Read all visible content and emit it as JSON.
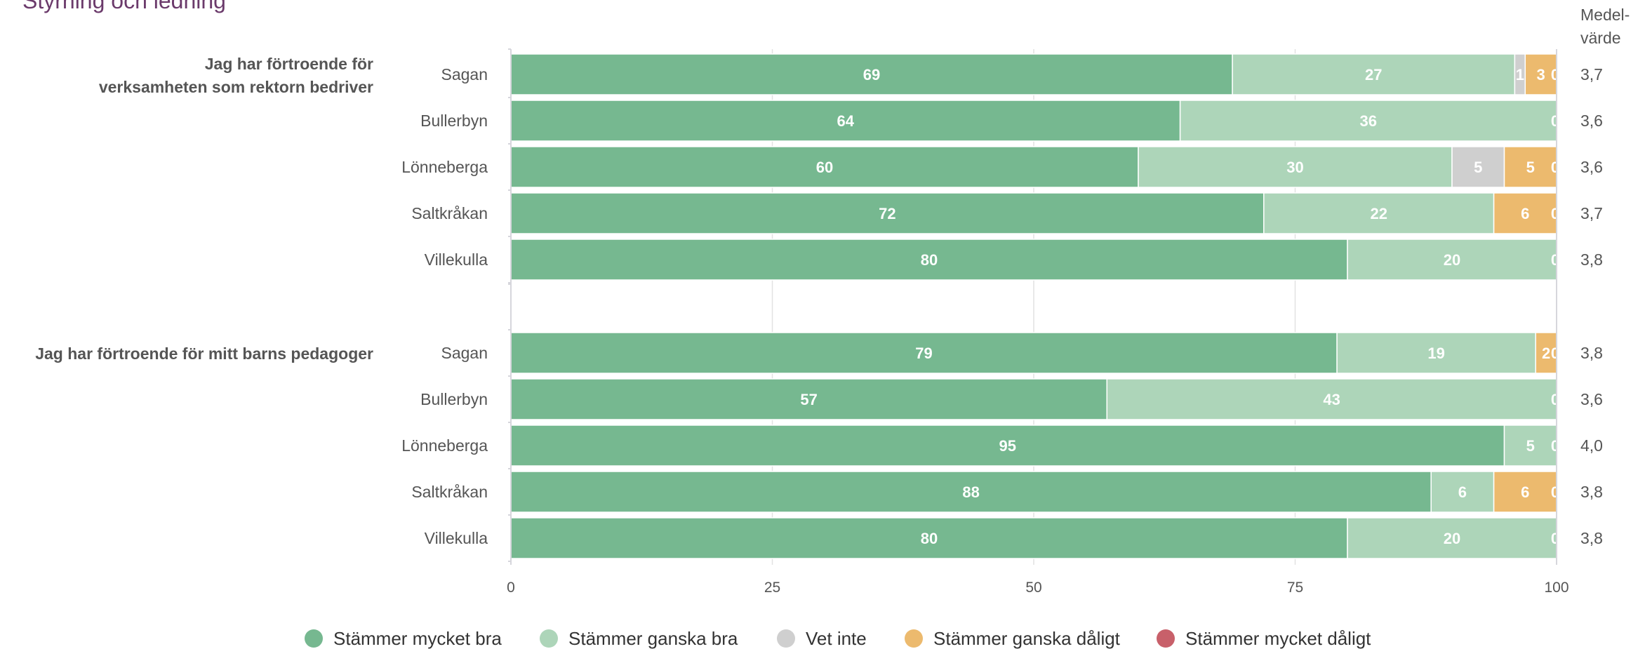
{
  "title": "Styrning och ledning",
  "mean_header_line1": "Medel-",
  "mean_header_line2": "värde",
  "colors": {
    "Stämmer mycket bra": "#76b890",
    "Stämmer ganska bra": "#add5b9",
    "Vet inte": "#cfcfcf",
    "Stämmer ganska dåligt": "#ecba6e",
    "Stämmer mycket dåligt": "#c8606a"
  },
  "chart_data": {
    "type": "bar",
    "orientation": "horizontal",
    "stacked": true,
    "title": "Styrning och ledning",
    "xlim": [
      0,
      100
    ],
    "xticks": [
      "0",
      "25",
      "50",
      "75",
      "100"
    ],
    "grid": true,
    "legend_position": "bottom",
    "series_names": [
      "Stämmer mycket bra",
      "Stämmer ganska bra",
      "Vet inte",
      "Stämmer ganska dåligt",
      "Stämmer mycket dåligt"
    ],
    "groups": [
      {
        "label_lines": [
          "Jag har förtroende för",
          "verksamheten som rektorn bedriver"
        ],
        "rows": [
          {
            "category": "Sagan",
            "values": [
              69,
              27,
              1,
              3,
              0
            ],
            "mean": "3,7"
          },
          {
            "category": "Bullerbyn",
            "values": [
              64,
              36,
              0,
              0,
              0
            ],
            "mean": "3,6"
          },
          {
            "category": "Lönneberga",
            "values": [
              60,
              30,
              5,
              5,
              0
            ],
            "mean": "3,6"
          },
          {
            "category": "Saltkråkan",
            "values": [
              72,
              22,
              0,
              6,
              0
            ],
            "mean": "3,7"
          },
          {
            "category": "Villekulla",
            "values": [
              80,
              20,
              0,
              0,
              0
            ],
            "mean": "3,8"
          }
        ]
      },
      {
        "label_lines": [
          "Jag har förtroende för mitt barns pedagoger"
        ],
        "rows": [
          {
            "category": "Sagan",
            "values": [
              79,
              19,
              0,
              2,
              0
            ],
            "mean": "3,8"
          },
          {
            "category": "Bullerbyn",
            "values": [
              57,
              43,
              0,
              0,
              0
            ],
            "mean": "3,6"
          },
          {
            "category": "Lönneberga",
            "values": [
              95,
              5,
              0,
              0,
              0
            ],
            "mean": "4,0"
          },
          {
            "category": "Saltkråkan",
            "values": [
              88,
              6,
              0,
              6,
              0
            ],
            "mean": "3,8"
          },
          {
            "category": "Villekulla",
            "values": [
              80,
              20,
              0,
              0,
              0
            ],
            "mean": "3,8"
          }
        ]
      }
    ]
  }
}
